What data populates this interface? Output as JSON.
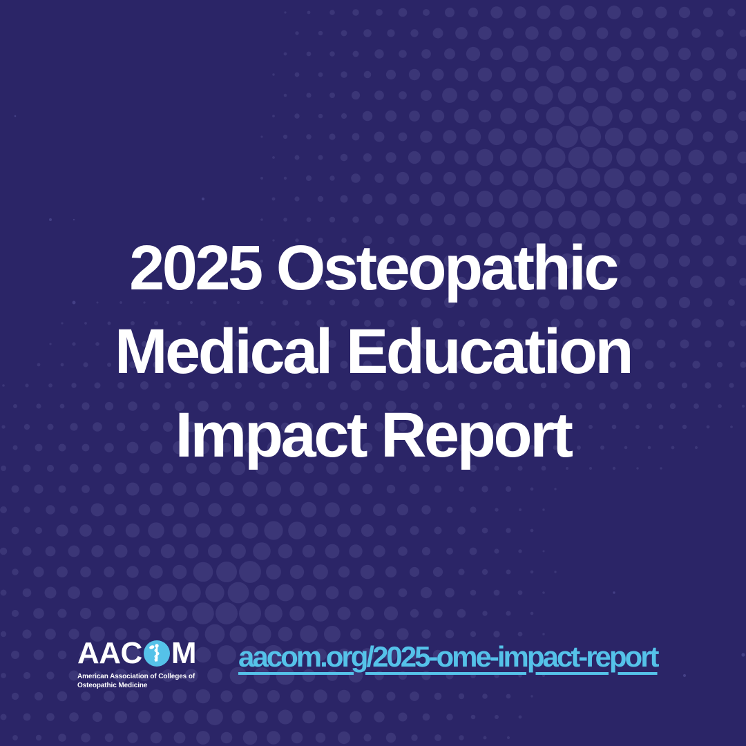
{
  "poster": {
    "title_lines": [
      "2025 Osteopathic",
      "Medical Education",
      "Impact Report"
    ],
    "url": "aacom.org/2025-ome-impact-report",
    "logo": {
      "wordmark_left": "AAC",
      "wordmark_right": "M",
      "icon": "rod-of-asclepius-icon",
      "tagline_line1": "American Association of Colleges of",
      "tagline_line2": "Osteopathic Medicine"
    }
  },
  "colors": {
    "background": "#2B2567",
    "dot": "#3C3778",
    "dot_speckle": "#4A468C",
    "accent_blue": "#55C2E9",
    "title_white": "#FFFFFF"
  }
}
